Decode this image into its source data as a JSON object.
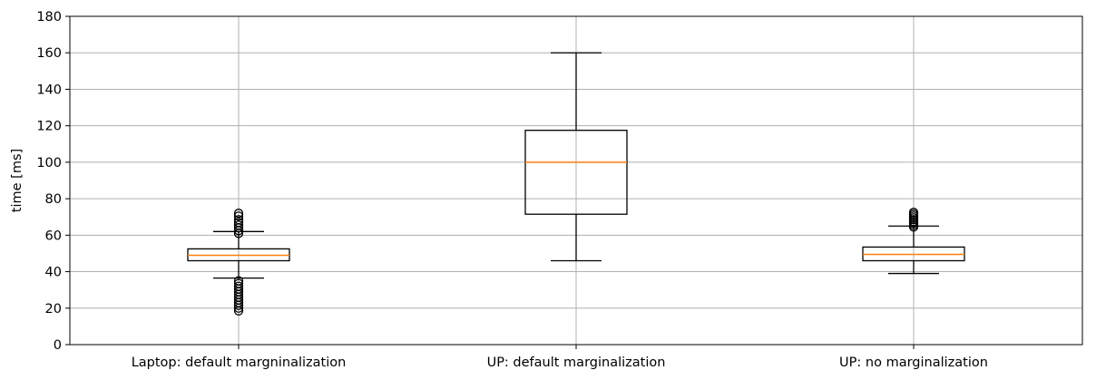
{
  "chart_data": {
    "type": "box",
    "title": "",
    "xlabel": "",
    "ylabel": "time [ms]",
    "ylim": [
      0,
      180
    ],
    "yticks": [
      0,
      20,
      40,
      60,
      80,
      100,
      120,
      140,
      160,
      180
    ],
    "grid": true,
    "categories": [
      "Laptop: default margninalization",
      "UP: default marginalization",
      "UP: no marginalization"
    ],
    "boxes": [
      {
        "label": "Laptop: default margninalization",
        "whisker_low": 36.5,
        "q1": 46,
        "median": 49,
        "q3": 52.5,
        "whisker_high": 62,
        "outliers": [
          18.5,
          20,
          21.5,
          23,
          24.5,
          26,
          27.5,
          29,
          30.5,
          32,
          33.5,
          35,
          61,
          62.5,
          64,
          65.5,
          67,
          68.5,
          70.5,
          72
        ]
      },
      {
        "label": "UP: default marginalization",
        "whisker_low": 46,
        "q1": 71.5,
        "median": 100,
        "q3": 117.5,
        "whisker_high": 160,
        "outliers": []
      },
      {
        "label": "UP: no marginalization",
        "whisker_low": 39,
        "q1": 46,
        "median": 49.5,
        "q3": 53.5,
        "whisker_high": 65,
        "outliers": [
          64.5,
          65.5,
          66.5,
          67.5,
          68.5,
          69.5,
          70.5,
          71.5,
          72.5
        ]
      }
    ],
    "colors": {
      "box_edge": "#000000",
      "median": "#ff7f0e",
      "grid": "#b0b0b0"
    }
  }
}
